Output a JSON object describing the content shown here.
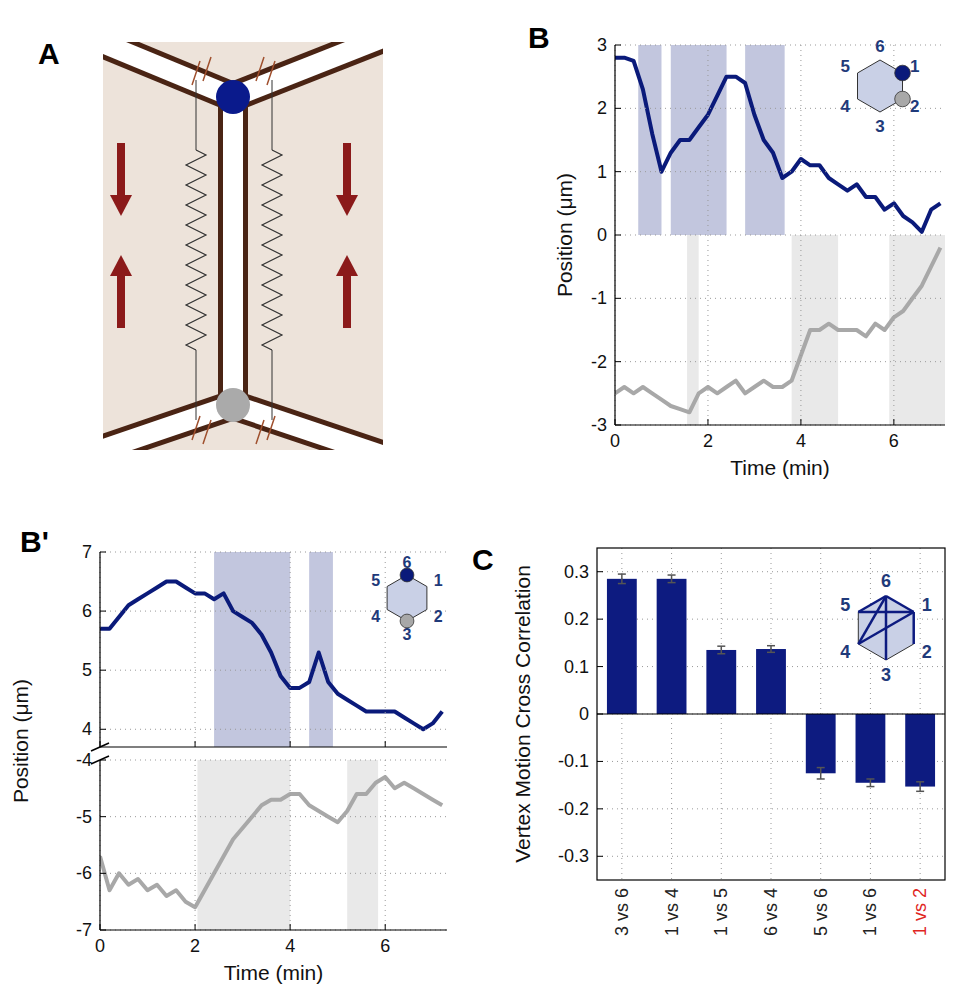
{
  "diagram": {
    "panel": "A"
  },
  "chart_data": [
    {
      "type": "line",
      "panel": "B",
      "x_label": "Time (min)",
      "y_label": "Position (μm)",
      "x": [
        0,
        0.2,
        0.4,
        0.6,
        0.8,
        1.0,
        1.2,
        1.4,
        1.6,
        1.8,
        2.0,
        2.2,
        2.4,
        2.6,
        2.8,
        3.0,
        3.2,
        3.4,
        3.6,
        3.8,
        4.0,
        4.2,
        4.4,
        4.6,
        4.8,
        5.0,
        5.2,
        5.4,
        5.6,
        5.8,
        6.0,
        6.2,
        6.4,
        6.6,
        6.8,
        7.0
      ],
      "xlim": [
        0,
        7.1
      ],
      "xticks": [
        0,
        2,
        4,
        6
      ],
      "ylim": [
        -3,
        3
      ],
      "yticks": [
        -3,
        -2,
        -1,
        0,
        1,
        2,
        3
      ],
      "grid": true,
      "series": [
        {
          "color": "#0a1a7a",
          "values": [
            2.8,
            2.8,
            2.75,
            2.3,
            1.6,
            1.0,
            1.3,
            1.5,
            1.5,
            1.7,
            1.9,
            2.2,
            2.5,
            2.5,
            2.4,
            1.9,
            1.5,
            1.3,
            0.9,
            1.0,
            1.2,
            1.1,
            1.1,
            0.9,
            0.8,
            0.7,
            0.8,
            0.6,
            0.6,
            0.4,
            0.5,
            0.3,
            0.2,
            0.05,
            0.4,
            0.5
          ],
          "spans": [
            {
              "x": [
                0.5,
                1.0
              ],
              "y": [
                0,
                3
              ]
            },
            {
              "x": [
                1.2,
                2.4
              ],
              "y": [
                0,
                3
              ]
            },
            {
              "x": [
                2.8,
                3.65
              ],
              "y": [
                0,
                3
              ]
            }
          ]
        },
        {
          "color": "#a8a8a8",
          "values": [
            -2.5,
            -2.4,
            -2.5,
            -2.4,
            -2.5,
            -2.6,
            -2.7,
            -2.75,
            -2.8,
            -2.5,
            -2.4,
            -2.5,
            -2.4,
            -2.3,
            -2.5,
            -2.4,
            -2.3,
            -2.4,
            -2.4,
            -2.3,
            -1.9,
            -1.5,
            -1.5,
            -1.4,
            -1.5,
            -1.5,
            -1.5,
            -1.6,
            -1.4,
            -1.5,
            -1.3,
            -1.2,
            -1.0,
            -0.8,
            -0.5,
            -0.2
          ],
          "spans": [
            {
              "x": [
                1.55,
                1.8
              ],
              "y": [
                -3,
                0
              ]
            },
            {
              "x": [
                3.8,
                4.8
              ],
              "y": [
                -3,
                0
              ]
            },
            {
              "x": [
                5.9,
                7.1
              ],
              "y": [
                -3,
                0
              ]
            }
          ]
        }
      ],
      "annotations": {
        "vertices": [
          "1",
          "2",
          "3",
          "4",
          "5",
          "6"
        ],
        "marked": [
          "1",
          "2"
        ]
      }
    },
    {
      "type": "line",
      "panel": "B'",
      "y_label": "Position (μm)",
      "tick_labels": "y",
      "x": [
        0,
        0.2,
        0.4,
        0.6,
        0.8,
        1.0,
        1.2,
        1.4,
        1.6,
        1.8,
        2.0,
        2.2,
        2.4,
        2.6,
        2.8,
        3.0,
        3.2,
        3.4,
        3.6,
        3.8,
        4.0,
        4.2,
        4.4,
        4.6,
        4.8,
        5.0,
        5.2,
        5.4,
        5.6,
        5.8,
        6.0,
        6.2,
        6.4,
        6.6,
        6.8,
        7.0,
        7.2
      ],
      "xlim": [
        0,
        7.3
      ],
      "xticks": [
        0,
        2,
        4,
        6
      ],
      "ylim": [
        3.7,
        7
      ],
      "yticks": [
        4,
        5,
        6,
        7
      ],
      "grid": true,
      "series": [
        {
          "color": "#0a1a7a",
          "values": [
            5.7,
            5.7,
            5.9,
            6.1,
            6.2,
            6.3,
            6.4,
            6.5,
            6.5,
            6.4,
            6.3,
            6.3,
            6.2,
            6.3,
            6.0,
            5.9,
            5.8,
            5.6,
            5.3,
            4.9,
            4.7,
            4.7,
            4.8,
            5.3,
            4.8,
            4.6,
            4.5,
            4.4,
            4.3,
            4.3,
            4.3,
            4.3,
            4.2,
            4.1,
            4.0,
            4.1,
            4.3
          ],
          "spans": [
            {
              "x": [
                2.4,
                4.0
              ],
              "y": [
                3.7,
                7
              ]
            },
            {
              "x": [
                4.4,
                4.9
              ],
              "y": [
                3.7,
                7
              ]
            }
          ]
        }
      ],
      "annotations": {
        "vertices": [
          "1",
          "2",
          "3",
          "4",
          "5",
          "6"
        ],
        "marked": [
          "6",
          "3"
        ]
      }
    },
    {
      "type": "line",
      "x_label": "Time (min)",
      "x": [
        0,
        0.2,
        0.4,
        0.6,
        0.8,
        1.0,
        1.2,
        1.4,
        1.6,
        1.8,
        2.0,
        2.2,
        2.4,
        2.6,
        2.8,
        3.0,
        3.2,
        3.4,
        3.6,
        3.8,
        4.0,
        4.2,
        4.4,
        4.6,
        4.8,
        5.0,
        5.2,
        5.4,
        5.6,
        5.8,
        6.0,
        6.2,
        6.4,
        6.6,
        6.8,
        7.0,
        7.2
      ],
      "xlim": [
        0,
        7.3
      ],
      "xticks": [
        0,
        2,
        4,
        6
      ],
      "ylim": [
        -7,
        -4
      ],
      "yticks": [
        -7,
        -6,
        -5,
        -4
      ],
      "grid": true,
      "series": [
        {
          "color": "#a8a8a8",
          "values": [
            -5.7,
            -6.3,
            -6.0,
            -6.2,
            -6.1,
            -6.3,
            -6.2,
            -6.4,
            -6.3,
            -6.5,
            -6.6,
            -6.3,
            -6.0,
            -5.7,
            -5.4,
            -5.2,
            -5.0,
            -4.8,
            -4.7,
            -4.7,
            -4.6,
            -4.6,
            -4.8,
            -4.9,
            -5.0,
            -5.1,
            -4.9,
            -4.6,
            -4.6,
            -4.4,
            -4.3,
            -4.5,
            -4.4,
            -4.5,
            -4.6,
            -4.7,
            -4.8
          ],
          "spans": [
            {
              "x": [
                2.05,
                4.0
              ],
              "y": [
                -7,
                -4
              ]
            },
            {
              "x": [
                5.2,
                5.85
              ],
              "y": [
                -7,
                -4
              ]
            }
          ]
        }
      ]
    },
    {
      "type": "bar",
      "panel": "C",
      "y_label": "Vertex Motion Cross Correlation",
      "categories": [
        "3 vs 6",
        "1 vs 4",
        "1 vs 5",
        "6 vs 4",
        "5 vs 6",
        "1 vs 6",
        "1 vs 2"
      ],
      "values": [
        0.285,
        0.285,
        0.135,
        0.137,
        -0.125,
        -0.145,
        -0.153
      ],
      "errors": [
        0.01,
        0.008,
        0.008,
        0.007,
        0.012,
        0.008,
        0.01
      ],
      "color": "#0d1b80",
      "label_colors": [
        "#222222",
        "#222222",
        "#222222",
        "#222222",
        "#222222",
        "#222222",
        "#e0261f"
      ],
      "ylim": [
        -0.35,
        0.35
      ],
      "yticks": [
        -0.3,
        -0.2,
        -0.1,
        0,
        0.1,
        0.2,
        0.3
      ],
      "grid": true,
      "annotations": {
        "vertices": [
          "1",
          "2",
          "3",
          "4",
          "5",
          "6"
        ]
      }
    }
  ]
}
